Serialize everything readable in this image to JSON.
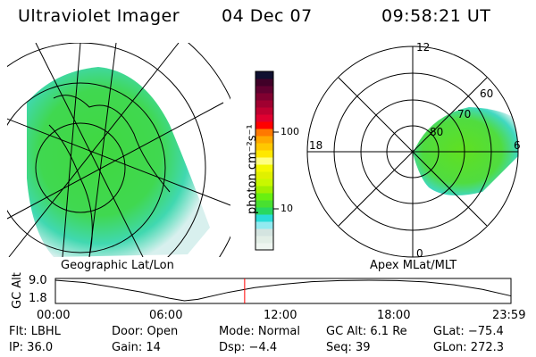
{
  "header": {
    "title": "Ultraviolet Imager",
    "date": "04 Dec 07",
    "time": "09:58:21 UT"
  },
  "left_panel": {
    "label": "Geographic Lat/Lon"
  },
  "right_panel": {
    "label": "Apex MLat/MLT",
    "mlt_labels": [
      "12",
      "18",
      "6",
      "0"
    ],
    "mlat_labels": [
      "80",
      "70",
      "60"
    ]
  },
  "colorbar": {
    "label": "photon cm⁻²s⁻¹",
    "ticks": [
      "100",
      "10"
    ],
    "colors": [
      "#eef5f0",
      "#e2eee6",
      "#d4e4e0",
      "#92eaf0",
      "#2adcd8",
      "#28d860",
      "#48e030",
      "#68f010",
      "#a0f000",
      "#c8f800",
      "#e0f000",
      "#f4f800",
      "#ffff80",
      "#ffe800",
      "#ffc800",
      "#ffa800",
      "#ff7800",
      "#ff0000",
      "#e00030",
      "#c00030",
      "#a00030",
      "#800030",
      "#600030",
      "#400028",
      "#101030"
    ]
  },
  "chart_data": {
    "type": "line",
    "ylabel": "GC Alt",
    "y_ticks": [
      "9.0",
      "1.8"
    ],
    "ylim": [
      1.8,
      9.0
    ],
    "x_ticks": [
      "00:00",
      "06:00",
      "12:00",
      "18:00",
      "23:59"
    ],
    "xlim": [
      0,
      24
    ],
    "x": [
      0,
      1.5,
      3,
      4.5,
      6,
      6.8,
      7.5,
      9,
      10.5,
      12,
      13.5,
      15,
      16.5,
      18,
      19.5,
      21,
      22.5,
      24
    ],
    "values": [
      9.0,
      8.2,
      6.6,
      4.9,
      2.7,
      1.8,
      2.3,
      4.6,
      6.4,
      7.6,
      8.5,
      8.9,
      9.0,
      8.9,
      8.4,
      7.4,
      5.8,
      3.5
    ],
    "current_time_marker": 9.97,
    "marker_color": "#ff0000"
  },
  "info": [
    [
      "Flt: LBHL",
      "Door: Open",
      "Mode: Normal",
      "GC Alt: 6.1 Re",
      "GLat: −75.4"
    ],
    [
      "IP: 36.0",
      "Gain: 14",
      "Dsp:    −4.4",
      "Seq: 39",
      "GLon: 272.3"
    ]
  ]
}
